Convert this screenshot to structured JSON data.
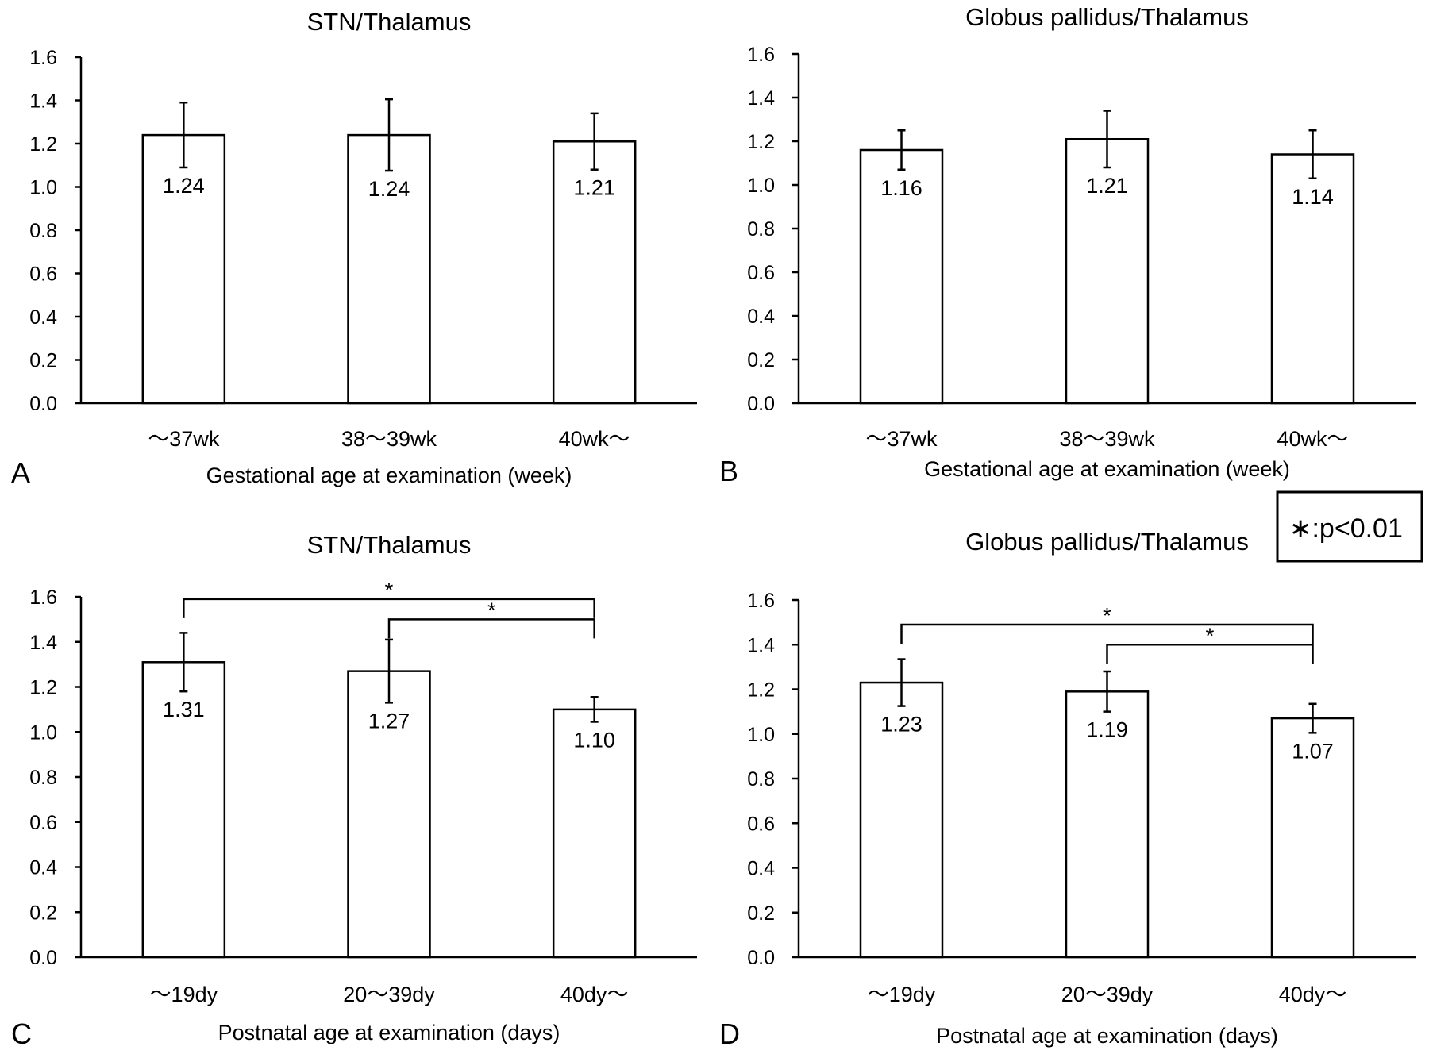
{
  "chart_data": [
    {
      "panel": "A",
      "type": "bar",
      "title": "STN/Thalamus",
      "xlabel": "Gestational age at examination (week)",
      "ylabel": "",
      "categories": [
        "～37wk",
        "38～39wk",
        "40wk～"
      ],
      "values": [
        1.24,
        1.24,
        1.21
      ],
      "value_labels": [
        "1.24",
        "1.24",
        "1.21"
      ],
      "error": [
        0.15,
        0.165,
        0.13
      ],
      "ylim": [
        0,
        1.6
      ],
      "yticks": [
        "0.0",
        "0.2",
        "0.4",
        "0.6",
        "0.8",
        "1.0",
        "1.2",
        "1.4",
        "1.6"
      ],
      "significance": []
    },
    {
      "panel": "B",
      "type": "bar",
      "title": "Globus pallidus/Thalamus",
      "xlabel": "Gestational age at examination (week)",
      "ylabel": "",
      "categories": [
        "～37wk",
        "38～39wk",
        "40wk～"
      ],
      "values": [
        1.16,
        1.21,
        1.14
      ],
      "value_labels": [
        "1.16",
        "1.21",
        "1.14"
      ],
      "error": [
        0.09,
        0.13,
        0.11
      ],
      "ylim": [
        0,
        1.6
      ],
      "yticks": [
        "0.0",
        "0.2",
        "0.4",
        "0.6",
        "0.8",
        "1.0",
        "1.2",
        "1.4",
        "1.6"
      ],
      "significance": []
    },
    {
      "panel": "C",
      "type": "bar",
      "title": "STN/Thalamus",
      "xlabel": "Postnatal age at examination (days)",
      "ylabel": "",
      "categories": [
        "～19dy",
        "20～39dy",
        "40dy～"
      ],
      "values": [
        1.31,
        1.27,
        1.1
      ],
      "value_labels": [
        "1.31",
        "1.27",
        "1.10"
      ],
      "error": [
        0.13,
        0.14,
        0.055
      ],
      "ylim": [
        0,
        1.6
      ],
      "yticks": [
        "0.0",
        "0.2",
        "0.4",
        "0.6",
        "0.8",
        "1.0",
        "1.2",
        "1.4",
        "1.6"
      ],
      "significance": [
        {
          "from": 0,
          "to": 2,
          "level": 1.59,
          "label": "*"
        },
        {
          "from": 1,
          "to": 2,
          "level": 1.5,
          "label": "*"
        }
      ]
    },
    {
      "panel": "D",
      "type": "bar",
      "title": "Globus pallidus/Thalamus",
      "xlabel": "Postnatal age at examination (days)",
      "ylabel": "",
      "categories": [
        "～19dy",
        "20～39dy",
        "40dy～"
      ],
      "values": [
        1.23,
        1.19,
        1.07
      ],
      "value_labels": [
        "1.23",
        "1.19",
        "1.07"
      ],
      "error": [
        0.105,
        0.09,
        0.065
      ],
      "ylim": [
        0,
        1.6
      ],
      "yticks": [
        "0.0",
        "0.2",
        "0.4",
        "0.6",
        "0.8",
        "1.0",
        "1.2",
        "1.4",
        "1.6"
      ],
      "significance": [
        {
          "from": 0,
          "to": 2,
          "level": 1.49,
          "label": "*"
        },
        {
          "from": 1,
          "to": 2,
          "level": 1.4,
          "label": "*"
        }
      ]
    }
  ],
  "legend": {
    "text": "∗:p<0.01"
  },
  "colors": {
    "bar_fill": "#ffffff",
    "stroke": "#000000"
  }
}
